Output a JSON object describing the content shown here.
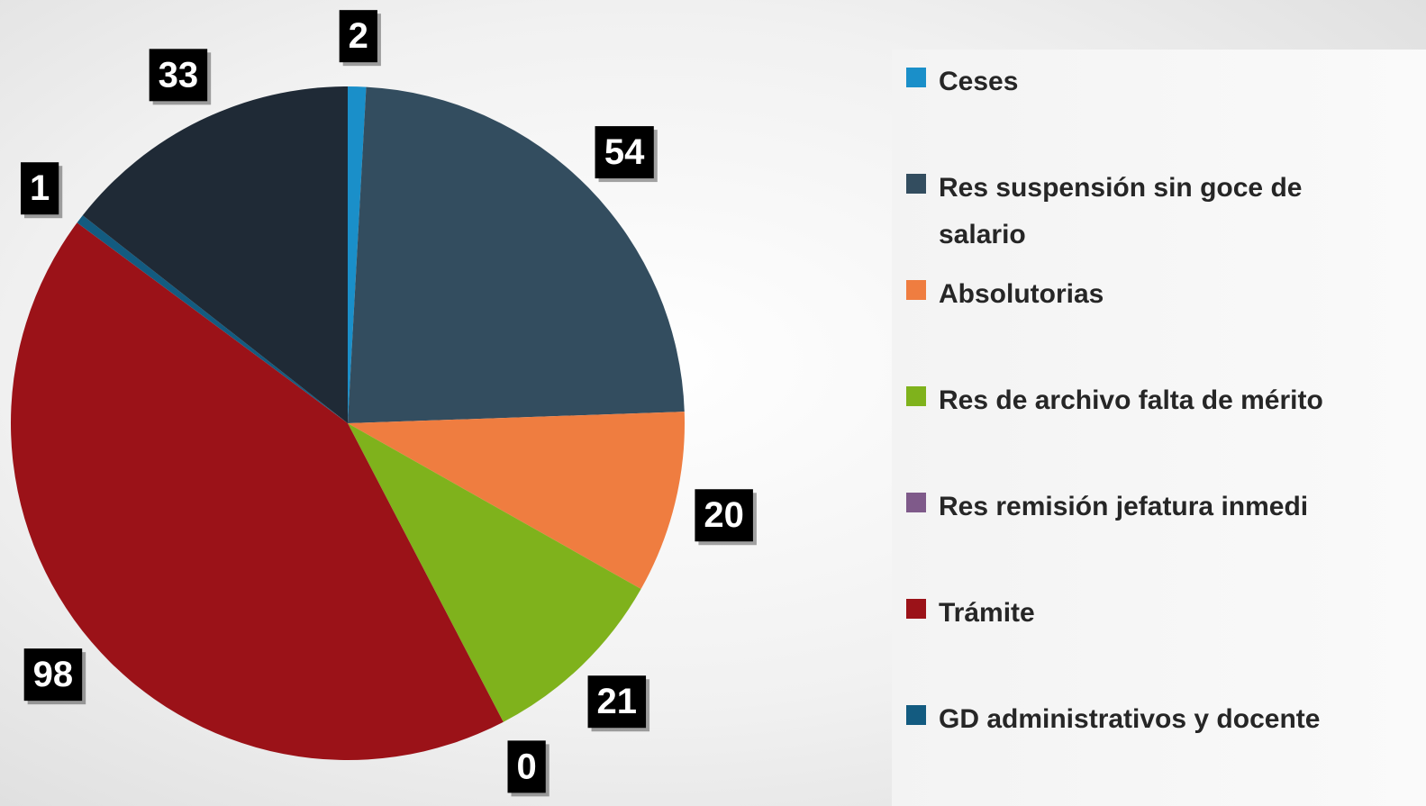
{
  "chart_data": {
    "type": "pie",
    "categories": [
      "Ceses",
      "Res suspensión sin goce de salario",
      "Absolutorias",
      "Res de archivo falta de mérito",
      "Res remisión jefatura inmedi",
      "Trámite",
      "GD administrativos y docente",
      null
    ],
    "values": [
      2,
      54,
      20,
      21,
      0,
      98,
      1,
      33
    ],
    "colors": [
      "#1a8fc9",
      "#334d5f",
      "#ef7d40",
      "#7fb21c",
      "#7f5a8a",
      "#9b1218",
      "#135b80",
      "#1f2a36"
    ],
    "legend": "right"
  }
}
